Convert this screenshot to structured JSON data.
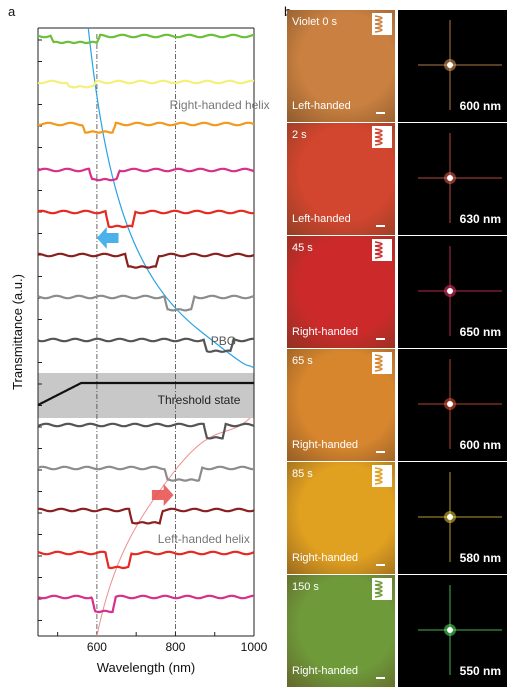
{
  "panel_a_label": "a",
  "panel_b_label": "b",
  "chart_data": {
    "type": "line",
    "xlabel": "Wavelength (nm)",
    "ylabel": "Transmittance (a.u.)",
    "xlim": [
      450,
      1000
    ],
    "x_ticks": [
      "600",
      "800",
      "1000"
    ],
    "dashed_reference_lines_at_nm": [
      600,
      800
    ],
    "grid": false,
    "annotations": [
      "Right-handed helix",
      "PBG",
      "Threshold state",
      "Left-handed helix"
    ],
    "colors": {
      "trace_green": "#6cbf3a",
      "trace_yellow": "#f4f07a",
      "trace_orange": "#f29a1e",
      "trace_magenta": "#d6308a",
      "trace_red": "#e42a23",
      "trace_darkred": "#8a1f1f",
      "trace_gray": "#8c8c8c",
      "trace_darkgray": "#545454",
      "trace_black": "#111111",
      "guide_blue": "#2aa3e6",
      "guide_pink": "#f08f8f",
      "threshold_band": "#c8c8c8"
    },
    "series": [
      {
        "color": "green",
        "band_nm": [
          490,
          600
        ],
        "band_depth": 0.4
      },
      {
        "color": "yellow",
        "band_nm": [
          530,
          590
        ],
        "band_depth": 0.3
      },
      {
        "color": "orange",
        "band_nm": [
          570,
          640
        ],
        "band_depth": 0.5
      },
      {
        "color": "magenta",
        "band_nm": [
          588,
          650
        ],
        "band_depth": 0.6
      },
      {
        "color": "red",
        "band_nm": [
          630,
          690
        ],
        "band_depth": 0.9
      },
      {
        "color": "darkred",
        "band_nm": [
          680,
          750
        ],
        "band_depth": 0.75
      },
      {
        "color": "gray",
        "band_nm": [
          780,
          840
        ],
        "band_depth": 0.8
      },
      {
        "color": "darkgray",
        "band_nm": [
          880,
          940
        ],
        "band_depth": 0.7
      },
      {
        "color": "black",
        "band_nm": null,
        "band_depth": 0,
        "label": "Threshold state"
      },
      {
        "color": "darkgray",
        "band_nm": [
          880,
          920
        ],
        "band_depth": 0.8
      },
      {
        "color": "gray",
        "band_nm": [
          780,
          860
        ],
        "band_depth": 0.75
      },
      {
        "color": "darkred",
        "band_nm": [
          690,
          760
        ],
        "band_depth": 0.8
      },
      {
        "color": "red",
        "band_nm": [
          630,
          680
        ],
        "band_depth": 0.9
      },
      {
        "color": "magenta",
        "band_nm": [
          595,
          640
        ],
        "band_depth": 0.9
      }
    ]
  },
  "panel_b": {
    "rows": [
      {
        "time": "Violet 0 s",
        "handedness": "Left-handed",
        "wavelength": "600 nm",
        "pol_color": "#c98040",
        "spot_color": "#ffb060"
      },
      {
        "time": "2 s",
        "handedness": "Left-handed",
        "wavelength": "630 nm",
        "pol_color": "#d2452e",
        "spot_color": "#ff6a5a"
      },
      {
        "time": "45 s",
        "handedness": "Right-handed",
        "wavelength": "650 nm",
        "pol_color": "#cc2a2a",
        "spot_color": "#ff3a70"
      },
      {
        "time": "65 s",
        "handedness": "Right-handed",
        "wavelength": "600 nm",
        "pol_color": "#d7862e",
        "spot_color": "#ff6040"
      },
      {
        "time": "85 s",
        "handedness": "Right-handed",
        "wavelength": "580 nm",
        "pol_color": "#e0a020",
        "spot_color": "#ffe040"
      },
      {
        "time": "150 s",
        "handedness": "Right-handed",
        "wavelength": "550 nm",
        "pol_color": "#6e9a3a",
        "spot_color": "#60ff70"
      }
    ]
  }
}
